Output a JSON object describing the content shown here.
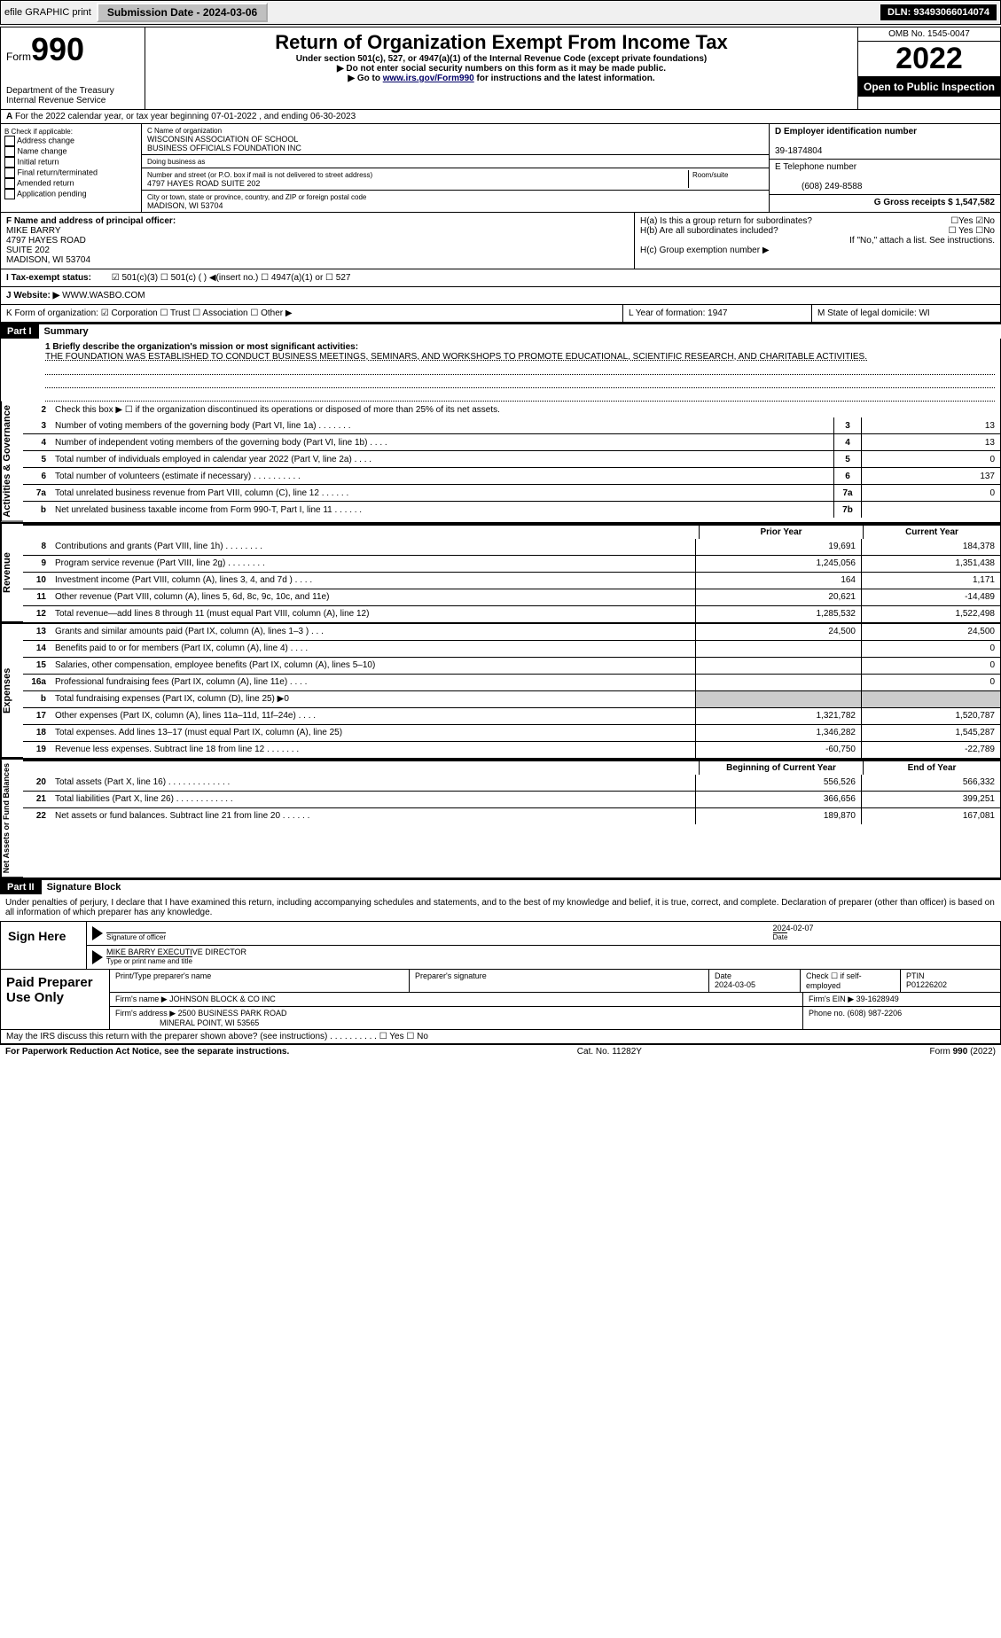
{
  "top": {
    "efile": "efile GRAPHIC print",
    "submission": "Submission Date - 2024-03-06",
    "dln": "DLN: 93493066014074"
  },
  "header": {
    "form": "Form",
    "form_no": "990",
    "dept": "Department of the Treasury\nInternal Revenue Service",
    "title": "Return of Organization Exempt From Income Tax",
    "sub1": "Under section 501(c), 527, or 4947(a)(1) of the Internal Revenue Code (except private foundations)",
    "sub2": "▶ Do not enter social security numbers on this form as it may be made public.",
    "sub3_pre": "▶ Go to ",
    "sub3_link": "www.irs.gov/Form990",
    "sub3_post": " for instructions and the latest information.",
    "omb": "OMB No. 1545-0047",
    "year": "2022",
    "open": "Open to Public Inspection"
  },
  "row_a": "For the 2022 calendar year, or tax year beginning 07-01-2022    , and ending 06-30-2023",
  "box_b": {
    "lbl": "B Check if applicable:",
    "items": [
      "Address change",
      "Name change",
      "Initial return",
      "Final return/terminated",
      "Amended return",
      "Application pending"
    ]
  },
  "box_c": {
    "lbl": "C Name of organization",
    "name": "WISCONSIN ASSOCIATION OF SCHOOL\nBUSINESS OFFICIALS FOUNDATION INC",
    "dba_lbl": "Doing business as",
    "addr_lbl": "Number and street (or P.O. box if mail is not delivered to street address)",
    "room_lbl": "Room/suite",
    "addr": "4797 HAYES ROAD SUITE 202",
    "city_lbl": "City or town, state or province, country, and ZIP or foreign postal code",
    "city": "MADISON, WI  53704"
  },
  "box_d": {
    "lbl": "D Employer identification number",
    "val": "39-1874804"
  },
  "box_e": {
    "lbl": "E Telephone number",
    "val": "(608) 249-8588"
  },
  "box_g": "G Gross receipts $ 1,547,582",
  "box_f": {
    "lbl": "F  Name and address of principal officer:",
    "val": "MIKE BARRY\n4797 HAYES ROAD\nSUITE 202\nMADISON, WI  53704"
  },
  "box_h": {
    "ha": "H(a)  Is this a group return for subordinates?",
    "ha_ans": "☐Yes ☑No",
    "hb": "H(b)  Are all subordinates included?",
    "hb_ans": "☐ Yes ☐No",
    "hb_note": "If \"No,\" attach a list. See instructions.",
    "hc": "H(c)  Group exemption number ▶"
  },
  "row_i": {
    "lbl": "I   Tax-exempt status:",
    "opts": "☑ 501(c)(3)   ☐ 501(c) (  ) ◀(insert no.)     ☐ 4947(a)(1) or   ☐ 527"
  },
  "row_j": {
    "lbl": "J   Website: ▶",
    "val": "WWW.WASBO.COM"
  },
  "row_k": "K Form of organization:  ☑ Corporation  ☐ Trust  ☐ Association  ☐ Other ▶",
  "row_l": "L Year of formation: 1947",
  "row_m": "M State of legal domicile: WI",
  "part1": {
    "hdr": "Part I",
    "title": "Summary",
    "l1_lbl": "1  Briefly describe the organization's mission or most significant activities:",
    "l1_val": "THE FOUNDATION WAS ESTABLISHED TO CONDUCT BUSINESS MEETINGS, SEMINARS, AND WORKSHOPS TO PROMOTE EDUCATIONAL, SCIENTIFIC RESEARCH, AND CHARITABLE ACTIVITIES.",
    "side1": "Activities & Governance",
    "l2": "Check this box ▶ ☐ if the organization discontinued its operations or disposed of more than 25% of its net assets.",
    "lines_ag": [
      {
        "n": "3",
        "d": "Number of voting members of the governing body (Part VI, line 1a)   .   .   .   .   .   .   .",
        "b": "3",
        "v": "13"
      },
      {
        "n": "4",
        "d": "Number of independent voting members of the governing body (Part VI, line 1b)   .   .   .   .",
        "b": "4",
        "v": "13"
      },
      {
        "n": "5",
        "d": "Total number of individuals employed in calendar year 2022 (Part V, line 2a)   .   .   .   .",
        "b": "5",
        "v": "0"
      },
      {
        "n": "6",
        "d": "Total number of volunteers (estimate if necessary)    .   .   .   .   .   .   .   .   .   .",
        "b": "6",
        "v": "137"
      },
      {
        "n": "7a",
        "d": "Total unrelated business revenue from Part VIII, column (C), line 12   .   .   .   .   .   .",
        "b": "7a",
        "v": "0"
      },
      {
        "n": "b",
        "d": "Net unrelated business taxable income from Form 990-T, Part I, line 11   .   .   .   .   .   .",
        "b": "7b",
        "v": ""
      }
    ],
    "side2": "Revenue",
    "col_prior": "Prior Year",
    "col_curr": "Current Year",
    "lines_rev": [
      {
        "n": "8",
        "d": "Contributions and grants (Part VIII, line 1h)   .   .   .   .   .   .   .   .",
        "p": "19,691",
        "c": "184,378"
      },
      {
        "n": "9",
        "d": "Program service revenue (Part VIII, line 2g)   .   .   .   .   .   .   .   .",
        "p": "1,245,056",
        "c": "1,351,438"
      },
      {
        "n": "10",
        "d": "Investment income (Part VIII, column (A), lines 3, 4, and 7d )   .   .   .   .",
        "p": "164",
        "c": "1,171"
      },
      {
        "n": "11",
        "d": "Other revenue (Part VIII, column (A), lines 5, 6d, 8c, 9c, 10c, and 11e)",
        "p": "20,621",
        "c": "-14,489"
      },
      {
        "n": "12",
        "d": "Total revenue—add lines 8 through 11 (must equal Part VIII, column (A), line 12)",
        "p": "1,285,532",
        "c": "1,522,498"
      }
    ],
    "side3": "Expenses",
    "lines_exp": [
      {
        "n": "13",
        "d": "Grants and similar amounts paid (Part IX, column (A), lines 1–3 )   .   .   .",
        "p": "24,500",
        "c": "24,500"
      },
      {
        "n": "14",
        "d": "Benefits paid to or for members (Part IX, column (A), line 4)   .   .   .   .",
        "p": "",
        "c": "0"
      },
      {
        "n": "15",
        "d": "Salaries, other compensation, employee benefits (Part IX, column (A), lines 5–10)",
        "p": "",
        "c": "0"
      },
      {
        "n": "16a",
        "d": "Professional fundraising fees (Part IX, column (A), line 11e)   .   .   .   .",
        "p": "",
        "c": "0"
      },
      {
        "n": "b",
        "d": "Total fundraising expenses (Part IX, column (D), line 25) ▶0",
        "p": "—",
        "c": "—"
      },
      {
        "n": "17",
        "d": "Other expenses (Part IX, column (A), lines 11a–11d, 11f–24e)   .   .   .   .",
        "p": "1,321,782",
        "c": "1,520,787"
      },
      {
        "n": "18",
        "d": "Total expenses. Add lines 13–17 (must equal Part IX, column (A), line 25)",
        "p": "1,346,282",
        "c": "1,545,287"
      },
      {
        "n": "19",
        "d": "Revenue less expenses. Subtract line 18 from line 12   .   .   .   .   .   .   .",
        "p": "-60,750",
        "c": "-22,789"
      }
    ],
    "side4": "Net Assets or Fund Balances",
    "col_beg": "Beginning of Current Year",
    "col_end": "End of Year",
    "lines_na": [
      {
        "n": "20",
        "d": "Total assets (Part X, line 16)   .   .   .   .   .   .   .   .   .   .   .   .   .",
        "p": "556,526",
        "c": "566,332"
      },
      {
        "n": "21",
        "d": "Total liabilities (Part X, line 26)   .   .   .   .   .   .   .   .   .   .   .   .",
        "p": "366,656",
        "c": "399,251"
      },
      {
        "n": "22",
        "d": "Net assets or fund balances. Subtract line 21 from line 20   .   .   .   .   .   .",
        "p": "189,870",
        "c": "167,081"
      }
    ]
  },
  "part2": {
    "hdr": "Part II",
    "title": "Signature Block",
    "decl": "Under penalties of perjury, I declare that I have examined this return, including accompanying schedules and statements, and to the best of my knowledge and belief, it is true, correct, and complete. Declaration of preparer (other than officer) is based on all information of which preparer has any knowledge."
  },
  "sign": {
    "left": "Sign Here",
    "sig_lbl": "Signature of officer",
    "date": "2024-02-07",
    "date_lbl": "Date",
    "name": "MIKE BARRY EXECUTIVE DIRECTOR",
    "name_lbl": "Type or print name and title"
  },
  "prep": {
    "left": "Paid Preparer Use Only",
    "h1": "Print/Type preparer's name",
    "h2": "Preparer's signature",
    "h3": "Date",
    "h3v": "2024-03-05",
    "h4": "Check ☐ if self-employed",
    "h5": "PTIN",
    "h5v": "P01226202",
    "firm_lbl": "Firm's name      ▶",
    "firm": "JOHNSON BLOCK & CO INC",
    "ein_lbl": "Firm's EIN ▶",
    "ein": "39-1628949",
    "addr_lbl": "Firm's address ▶",
    "addr1": "2500 BUSINESS PARK ROAD",
    "addr2": "MINERAL POINT, WI  53565",
    "phone_lbl": "Phone no.",
    "phone": "(608) 987-2206"
  },
  "discuss": "May the IRS discuss this return with the preparer shown above? (see instructions)   .   .   .   .   .   .   .   .   .   .        ☐ Yes ☐ No",
  "footer": {
    "left": "For Paperwork Reduction Act Notice, see the separate instructions.",
    "mid": "Cat. No. 11282Y",
    "right": "Form 990 (2022)"
  }
}
